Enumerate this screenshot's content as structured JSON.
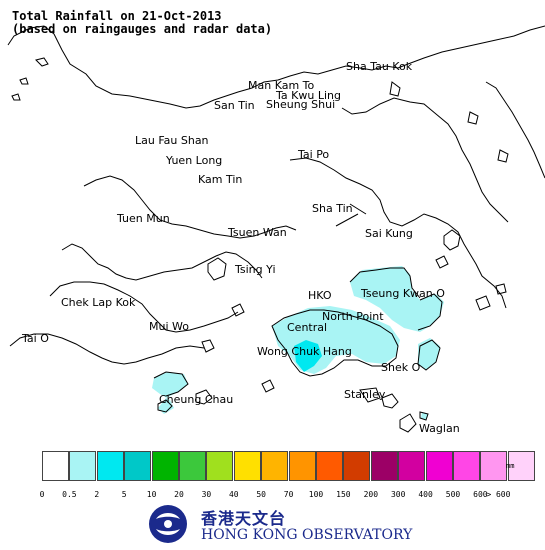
{
  "title_line1": "Total Rainfall on 21-Oct-2013",
  "title_line2": "(based on raingauges and radar data)",
  "places": [
    {
      "name": "Sha Tau Kok",
      "key": "sha-tau-kok"
    },
    {
      "name": "Man Kam To",
      "key": "man-kam-to"
    },
    {
      "name": "Ta Kwu Ling",
      "key": "ta-kwu-ling"
    },
    {
      "name": "San Tin",
      "key": "san-tin"
    },
    {
      "name": "Sheung Shui",
      "key": "sheung-shui"
    },
    {
      "name": "Lau Fau Shan",
      "key": "lau-fau-shan"
    },
    {
      "name": "Tai Po",
      "key": "tai-po"
    },
    {
      "name": "Yuen Long",
      "key": "yuen-long"
    },
    {
      "name": "Kam Tin",
      "key": "kam-tin"
    },
    {
      "name": "Sha Tin",
      "key": "sha-tin"
    },
    {
      "name": "Tuen Mun",
      "key": "tuen-mun"
    },
    {
      "name": "Tsuen Wan",
      "key": "tsuen-wan"
    },
    {
      "name": "Sai Kung",
      "key": "sai-kung"
    },
    {
      "name": "Tsing Yi",
      "key": "tsing-yi"
    },
    {
      "name": "Chek Lap Kok",
      "key": "chek-lap-kok"
    },
    {
      "name": "HKO",
      "key": "hko"
    },
    {
      "name": "Tseung Kwan O",
      "key": "tseung-kwan-o"
    },
    {
      "name": "North Point",
      "key": "north-point"
    },
    {
      "name": "Mui Wo",
      "key": "mui-wo"
    },
    {
      "name": "Central",
      "key": "central"
    },
    {
      "name": "Tai O",
      "key": "tai-o"
    },
    {
      "name": "Wong Chuk Hang",
      "key": "wong-chuk-hang"
    },
    {
      "name": "Shek O",
      "key": "shek-o"
    },
    {
      "name": "Cheung Chau",
      "key": "cheung-chau"
    },
    {
      "name": "Stanley",
      "key": "stanley"
    },
    {
      "name": "Waglan",
      "key": "waglan"
    }
  ],
  "rainfall_areas": [
    {
      "name": "Tseung Kwan O area",
      "level": "0.5-2"
    },
    {
      "name": "Harbour / Central area",
      "level": "0.5-2"
    },
    {
      "name": "Shek O area",
      "level": "0.5-2"
    },
    {
      "name": "Cheung Chau area",
      "level": "0.5-2"
    },
    {
      "name": "Wong Chuk Hang area",
      "level": "2-5"
    }
  ],
  "legend": {
    "unit": "mm",
    "ticks": [
      "0",
      "0.5",
      "2",
      "5",
      "10",
      "20",
      "30",
      "40",
      "50",
      "70",
      "100",
      "150",
      "200",
      "300",
      "400",
      "500",
      "600",
      "> 600"
    ],
    "colors": [
      "#ffffff",
      "#a9f4f4",
      "#00e8f0",
      "#00c8c8",
      "#00b400",
      "#3cc83c",
      "#a0e01e",
      "#ffe000",
      "#ffb400",
      "#ff9400",
      "#ff5a00",
      "#d23c00",
      "#9c0066",
      "#d200a0",
      "#f000d2",
      "#ff46e6",
      "#ff96f0",
      "#ffd2fa"
    ]
  },
  "brand": {
    "chinese": "香港天文台",
    "english": "HONG KONG OBSERVATORY"
  }
}
